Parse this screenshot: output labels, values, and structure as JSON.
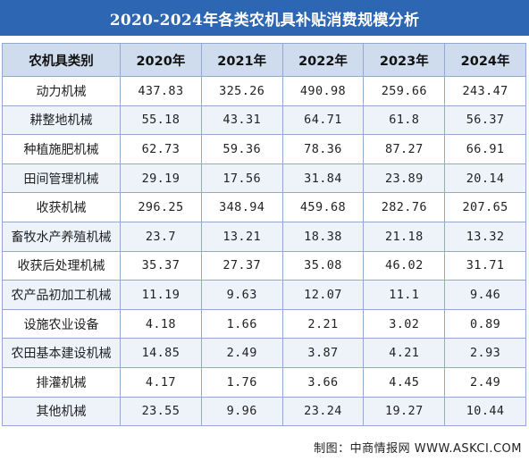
{
  "title": "2020-2024年各类农机具补贴消费规模分析",
  "table": {
    "headers": [
      "农机具类别",
      "2020年",
      "2021年",
      "2022年",
      "2023年",
      "2024年"
    ],
    "rows": [
      [
        "动力机械",
        "437.83",
        "325.26",
        "490.98",
        "259.66",
        "243.47"
      ],
      [
        "耕整地机械",
        "55.18",
        "43.31",
        "64.71",
        "61.8",
        "56.37"
      ],
      [
        "种植施肥机械",
        "62.73",
        "59.36",
        "78.36",
        "87.27",
        "66.91"
      ],
      [
        "田间管理机械",
        "29.19",
        "17.56",
        "31.84",
        "23.89",
        "20.14"
      ],
      [
        "收获机械",
        "296.25",
        "348.94",
        "459.68",
        "282.76",
        "207.65"
      ],
      [
        "畜牧水产养殖机械",
        "23.7",
        "13.21",
        "18.38",
        "21.18",
        "13.32"
      ],
      [
        "收获后处理机械",
        "35.37",
        "27.37",
        "35.08",
        "46.02",
        "31.71"
      ],
      [
        "农产品初加工机械",
        "11.19",
        "9.63",
        "12.07",
        "11.1",
        "9.46"
      ],
      [
        "设施农业设备",
        "4.18",
        "1.66",
        "2.21",
        "3.02",
        "0.89"
      ],
      [
        "农田基本建设机械",
        "14.85",
        "2.49",
        "3.87",
        "4.21",
        "2.93"
      ],
      [
        "排灌机械",
        "4.17",
        "1.76",
        "3.66",
        "4.45",
        "2.49"
      ],
      [
        "其他机械",
        "23.55",
        "9.96",
        "23.24",
        "19.27",
        "10.44"
      ]
    ]
  },
  "source": "制图：中商情报网 WWW.ASKCI.COM",
  "colors": {
    "title_bg": "#2d66b2",
    "header_bg": "#cfdcee",
    "stripe_bg": "#eef3fa",
    "border": "#8fa9cf"
  }
}
